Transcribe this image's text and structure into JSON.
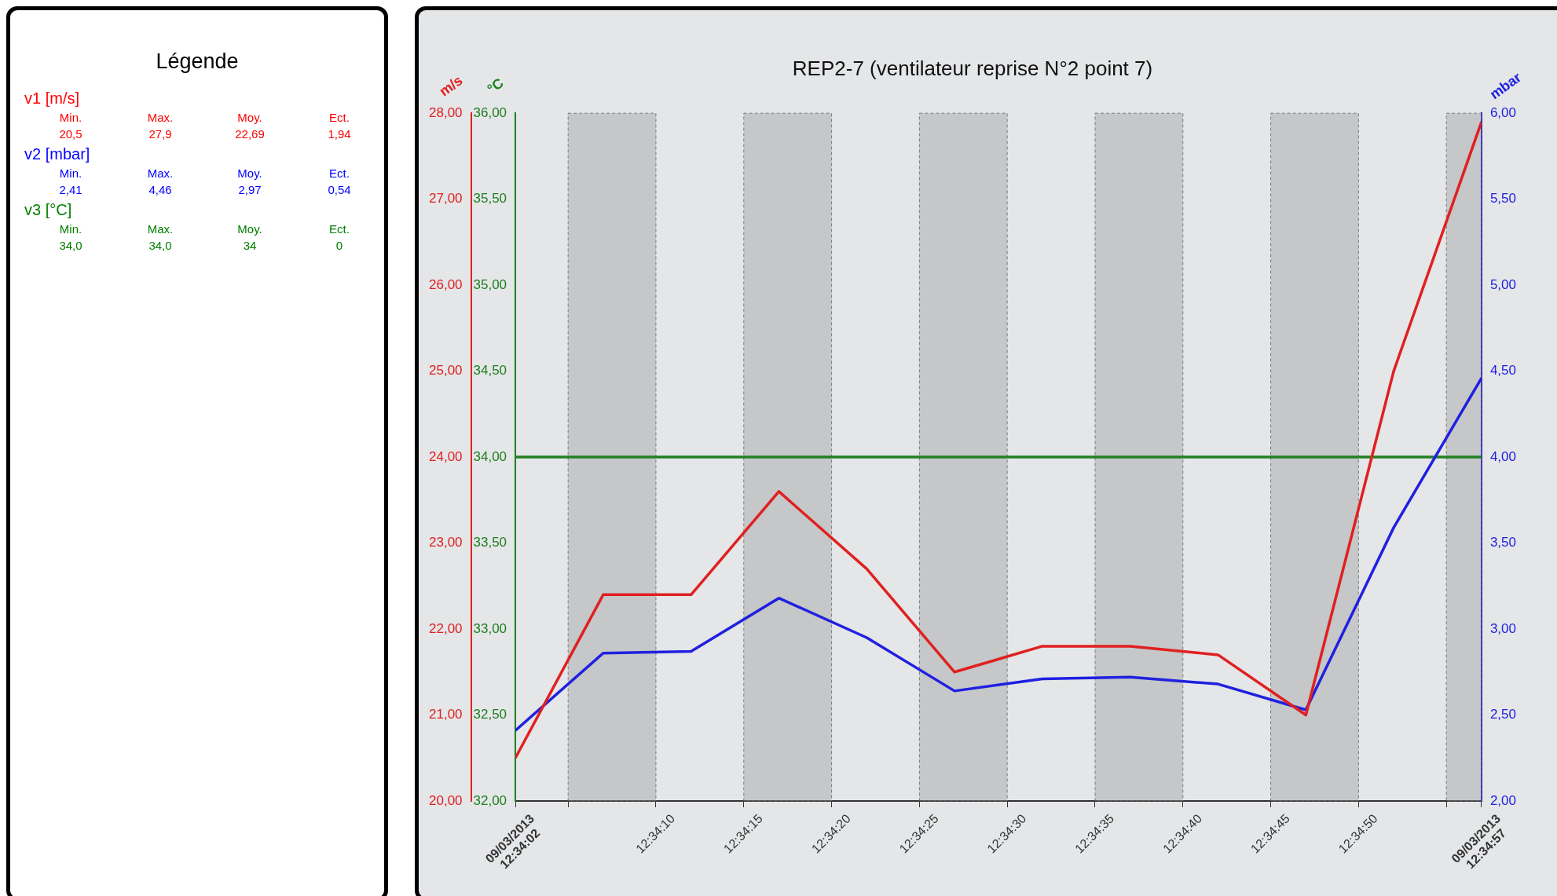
{
  "chart_data": [
    {
      "type": "other",
      "title": "Légende",
      "categories": [
        "Min.",
        "Max.",
        "Moy.",
        "Ect."
      ],
      "series": [
        {
          "name": "v1  [m/s]",
          "color": "#ff0000",
          "values": [
            20.5,
            27.9,
            22.69,
            1.94
          ],
          "value_labels": [
            "20,5",
            "27,9",
            "22,69",
            "1,94"
          ]
        },
        {
          "name": "v2  [mbar]",
          "color": "#0000ff",
          "values": [
            2.41,
            4.46,
            2.97,
            0.54
          ],
          "value_labels": [
            "2,41",
            "4,46",
            "2,97",
            "0,54"
          ]
        },
        {
          "name": "v3  [°C]",
          "color": "#008000",
          "values": [
            34.0,
            34.0,
            34,
            0
          ],
          "value_labels": [
            "34,0",
            "34,0",
            "34",
            "0"
          ]
        }
      ]
    },
    {
      "type": "line",
      "title": "REP2-7 (ventilateur reprise N°2 point 7)",
      "ylabel": "m/s",
      "y2label": "mbar",
      "y3label": "°C",
      "x": [
        "2013-03-09T12:34:02",
        "2013-03-09T12:34:07",
        "2013-03-09T12:34:12",
        "2013-03-09T12:34:17",
        "2013-03-09T12:34:22",
        "2013-03-09T12:34:27",
        "2013-03-09T12:34:32",
        "2013-03-09T12:34:37",
        "2013-03-09T12:34:42",
        "2013-03-09T12:34:47",
        "2013-03-09T12:34:52",
        "2013-03-09T12:34:57"
      ],
      "xlim": [
        "2013-03-09T12:34:02",
        "2013-03-09T12:34:57"
      ],
      "xticks": [
        {
          "value": "2013-03-09T12:34:02",
          "label": "09/03/2013 12:34:02"
        },
        {
          "value": "2013-03-09T12:34:05",
          "label": null
        },
        {
          "value": "2013-03-09T12:34:10",
          "label": "12:34:10"
        },
        {
          "value": "2013-03-09T12:34:15",
          "label": "12:34:15"
        },
        {
          "value": "2013-03-09T12:34:20",
          "label": "12:34:20"
        },
        {
          "value": "2013-03-09T12:34:25",
          "label": "12:34:25"
        },
        {
          "value": "2013-03-09T12:34:30",
          "label": "12:34:30"
        },
        {
          "value": "2013-03-09T12:34:35",
          "label": "12:34:35"
        },
        {
          "value": "2013-03-09T12:34:40",
          "label": "12:34:40"
        },
        {
          "value": "2013-03-09T12:34:45",
          "label": "12:34:45"
        },
        {
          "value": "2013-03-09T12:34:50",
          "label": "12:34:50"
        },
        {
          "value": "2013-03-09T12:34:55",
          "label": null
        },
        {
          "value": "2013-03-09T12:34:57",
          "label": "09/03/2013 12:34:57"
        }
      ],
      "ylim": [
        20,
        28
      ],
      "yticks": [
        {
          "value": 20,
          "label": "20,00"
        },
        {
          "value": 21,
          "label": "21,00"
        },
        {
          "value": 22,
          "label": "22,00"
        },
        {
          "value": 23,
          "label": "23,00"
        },
        {
          "value": 24,
          "label": "24,00"
        },
        {
          "value": 25,
          "label": "25,00"
        },
        {
          "value": 26,
          "label": "26,00"
        },
        {
          "value": 27,
          "label": "27,00"
        },
        {
          "value": 28,
          "label": "28,00"
        }
      ],
      "y2lim": [
        2,
        6
      ],
      "y2ticks": [
        {
          "value": 2,
          "label": "2,00"
        },
        {
          "value": 2.5,
          "label": "2,50"
        },
        {
          "value": 3,
          "label": "3,00"
        },
        {
          "value": 3.5,
          "label": "3,50"
        },
        {
          "value": 4,
          "label": "4,00"
        },
        {
          "value": 4.5,
          "label": "4,50"
        },
        {
          "value": 5,
          "label": "5,00"
        },
        {
          "value": 5.5,
          "label": "5,50"
        },
        {
          "value": 6,
          "label": "6,00"
        }
      ],
      "y3lim": [
        32,
        36
      ],
      "y3ticks": [
        {
          "value": 32,
          "label": "32,00"
        },
        {
          "value": 32.5,
          "label": "32,50"
        },
        {
          "value": 33,
          "label": "33,00"
        },
        {
          "value": 33.5,
          "label": "33,50"
        },
        {
          "value": 34,
          "label": "34,00"
        },
        {
          "value": 34.5,
          "label": "34,50"
        },
        {
          "value": 35,
          "label": "35,00"
        },
        {
          "value": 35.5,
          "label": "35,50"
        },
        {
          "value": 36,
          "label": "36,00"
        }
      ],
      "series": [
        {
          "color": "#e02020",
          "axis": "y",
          "values": [
            20.5,
            22.4,
            22.4,
            23.6,
            22.7,
            21.5,
            21.8,
            21.8,
            21.7,
            21.0,
            25.0,
            27.9
          ]
        },
        {
          "color": "#2020e0",
          "axis": "y2",
          "values": [
            2.41,
            2.86,
            2.87,
            3.18,
            2.95,
            2.64,
            2.71,
            2.72,
            2.68,
            2.53,
            3.59,
            4.46
          ]
        },
        {
          "color": "#208020",
          "axis": "y3",
          "values": [
            34,
            34,
            34,
            34,
            34,
            34,
            34,
            34,
            34,
            34,
            34,
            34
          ]
        }
      ],
      "bands": [
        {
          "axis": "x",
          "from": "2013-03-09T12:34:05",
          "to": "2013-03-09T12:34:10",
          "color": "#8c8c8c"
        },
        {
          "axis": "x",
          "from": "2013-03-09T12:34:15",
          "to": "2013-03-09T12:34:20",
          "color": "#8c8c8c"
        },
        {
          "axis": "x",
          "from": "2013-03-09T12:34:25",
          "to": "2013-03-09T12:34:30",
          "color": "#8c8c8c"
        },
        {
          "axis": "x",
          "from": "2013-03-09T12:34:35",
          "to": "2013-03-09T12:34:40",
          "color": "#8c8c8c"
        },
        {
          "axis": "x",
          "from": "2013-03-09T12:34:45",
          "to": "2013-03-09T12:34:50",
          "color": "#8c8c8c"
        },
        {
          "axis": "x",
          "from": "2013-03-09T12:34:55",
          "to": "2013-03-09T12:34:57",
          "color": "#8c8c8c"
        }
      ],
      "grid": false,
      "legend": false,
      "marker": "none",
      "line_style": "solid"
    }
  ]
}
